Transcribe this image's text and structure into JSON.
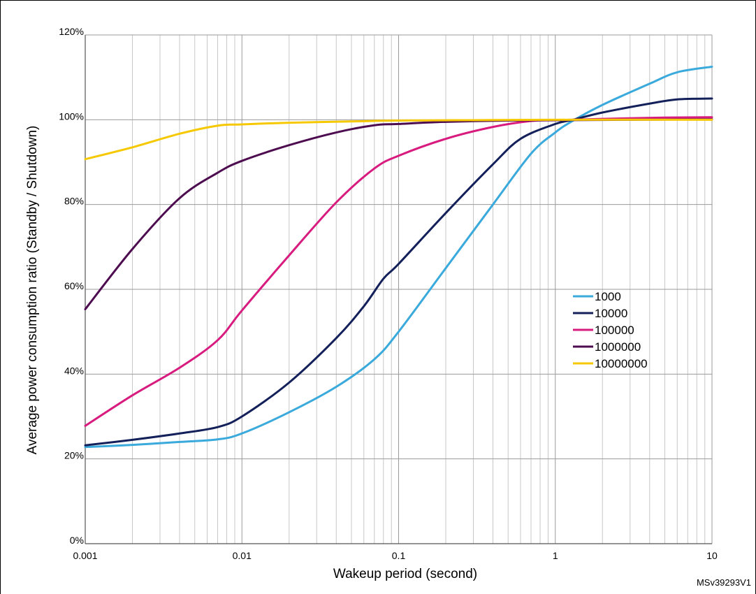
{
  "chart_data": {
    "type": "line",
    "x_scale": "log",
    "xlabel": "Wakeup period (second)",
    "ylabel": "Average power consumption ratio (Standby / Shutdown)",
    "xlim": [
      0.001,
      10
    ],
    "ylim": [
      0,
      120
    ],
    "x_ticks": [
      "0.001",
      "0.01",
      "0.1",
      "1",
      "10"
    ],
    "y_ticks": [
      "0%",
      "20%",
      "40%",
      "60%",
      "80%",
      "100%",
      "120%"
    ],
    "grid": true,
    "legend_position": "right",
    "reference_label": "MSv39293V1",
    "series": [
      {
        "name": "1000",
        "color": "#3aa9db",
        "points": [
          [
            0.001,
            22.8
          ],
          [
            0.002,
            23.3
          ],
          [
            0.004,
            24.0
          ],
          [
            0.007,
            24.6
          ],
          [
            0.01,
            26.0
          ],
          [
            0.02,
            31.0
          ],
          [
            0.04,
            37.0
          ],
          [
            0.07,
            43.5
          ],
          [
            0.1,
            50.0
          ],
          [
            0.2,
            65.0
          ],
          [
            0.4,
            80.0
          ],
          [
            0.7,
            92.0
          ],
          [
            1,
            97.0
          ],
          [
            1.3,
            99.8
          ],
          [
            2,
            103.5
          ],
          [
            4,
            108.5
          ],
          [
            6,
            111.2
          ],
          [
            10,
            112.5
          ]
        ]
      },
      {
        "name": "10000",
        "color": "#14205a",
        "points": [
          [
            0.001,
            23.2
          ],
          [
            0.002,
            24.5
          ],
          [
            0.004,
            26.0
          ],
          [
            0.007,
            27.5
          ],
          [
            0.01,
            30.0
          ],
          [
            0.02,
            38.0
          ],
          [
            0.04,
            48.5
          ],
          [
            0.06,
            56.0
          ],
          [
            0.08,
            62.5
          ],
          [
            0.1,
            66.0
          ],
          [
            0.2,
            78.0
          ],
          [
            0.4,
            89.5
          ],
          [
            0.6,
            95.5
          ],
          [
            1,
            99.0
          ],
          [
            1.3,
            100.0
          ],
          [
            2,
            101.7
          ],
          [
            4,
            103.8
          ],
          [
            6,
            104.8
          ],
          [
            10,
            105.0
          ]
        ]
      },
      {
        "name": "100000",
        "color": "#d81b7e",
        "points": [
          [
            0.001,
            27.8
          ],
          [
            0.002,
            35.0
          ],
          [
            0.004,
            41.5
          ],
          [
            0.007,
            48.0
          ],
          [
            0.01,
            55.0
          ],
          [
            0.02,
            68.0
          ],
          [
            0.04,
            80.5
          ],
          [
            0.07,
            88.5
          ],
          [
            0.1,
            91.5
          ],
          [
            0.2,
            95.5
          ],
          [
            0.4,
            98.3
          ],
          [
            0.7,
            99.7
          ],
          [
            1,
            99.9
          ],
          [
            2,
            100.2
          ],
          [
            5,
            100.5
          ],
          [
            10,
            100.6
          ]
        ]
      },
      {
        "name": "1000000",
        "color": "#4d0c4f",
        "points": [
          [
            0.001,
            55.3
          ],
          [
            0.002,
            69.5
          ],
          [
            0.004,
            81.5
          ],
          [
            0.007,
            87.5
          ],
          [
            0.01,
            90.3
          ],
          [
            0.02,
            94.0
          ],
          [
            0.04,
            97.0
          ],
          [
            0.07,
            98.7
          ],
          [
            0.1,
            99.0
          ],
          [
            0.2,
            99.5
          ],
          [
            0.5,
            99.8
          ],
          [
            1,
            99.9
          ],
          [
            3,
            100.0
          ],
          [
            10,
            100.1
          ]
        ]
      },
      {
        "name": "10000000",
        "color": "#f6c800",
        "points": [
          [
            0.001,
            90.7
          ],
          [
            0.002,
            93.5
          ],
          [
            0.004,
            96.7
          ],
          [
            0.007,
            98.6
          ],
          [
            0.01,
            98.9
          ],
          [
            0.02,
            99.3
          ],
          [
            0.05,
            99.6
          ],
          [
            0.1,
            99.8
          ],
          [
            0.3,
            99.9
          ],
          [
            1,
            100.0
          ],
          [
            10,
            100.0
          ]
        ]
      }
    ]
  }
}
